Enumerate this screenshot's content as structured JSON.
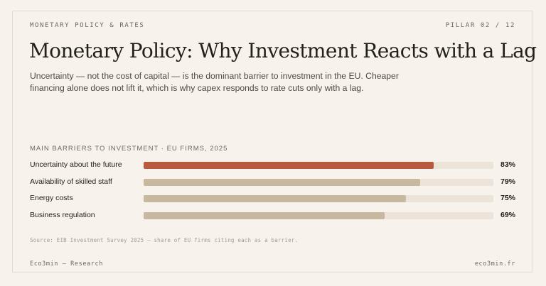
{
  "header": {
    "kicker": "MONETARY POLICY & RATES",
    "pillar": "PILLAR 02 / 12"
  },
  "title": "Monetary Policy: Why Investment Reacts with a Lag",
  "subtitle": "Uncertainty — not the cost of capital — is the dominant barrier to investment in the EU. Cheaper financing alone does not lift it, which is why capex responds to rate cuts only with a lag.",
  "chart_data": {
    "type": "bar",
    "orientation": "horizontal",
    "title": "MAIN BARRIERS TO INVESTMENT · EU FIRMS, 2025",
    "categories": [
      "Uncertainty about the future",
      "Availability of skilled staff",
      "Energy costs",
      "Business regulation"
    ],
    "values": [
      83,
      79,
      75,
      69
    ],
    "value_labels": [
      "83%",
      "79%",
      "75%",
      "69%"
    ],
    "xlim": [
      0,
      100
    ],
    "unit": "%",
    "colors": [
      "#b85a3e",
      "#c7b99f",
      "#c7b99f",
      "#c7b99f"
    ],
    "track_color": "#ece4d8",
    "grid": false,
    "legend": "none"
  },
  "source": "Source: EIB Investment Survey 2025 — share of EU firms citing each as a barrier.",
  "footer": {
    "left": "Eco3min — Research",
    "right": "eco3min.fr"
  }
}
